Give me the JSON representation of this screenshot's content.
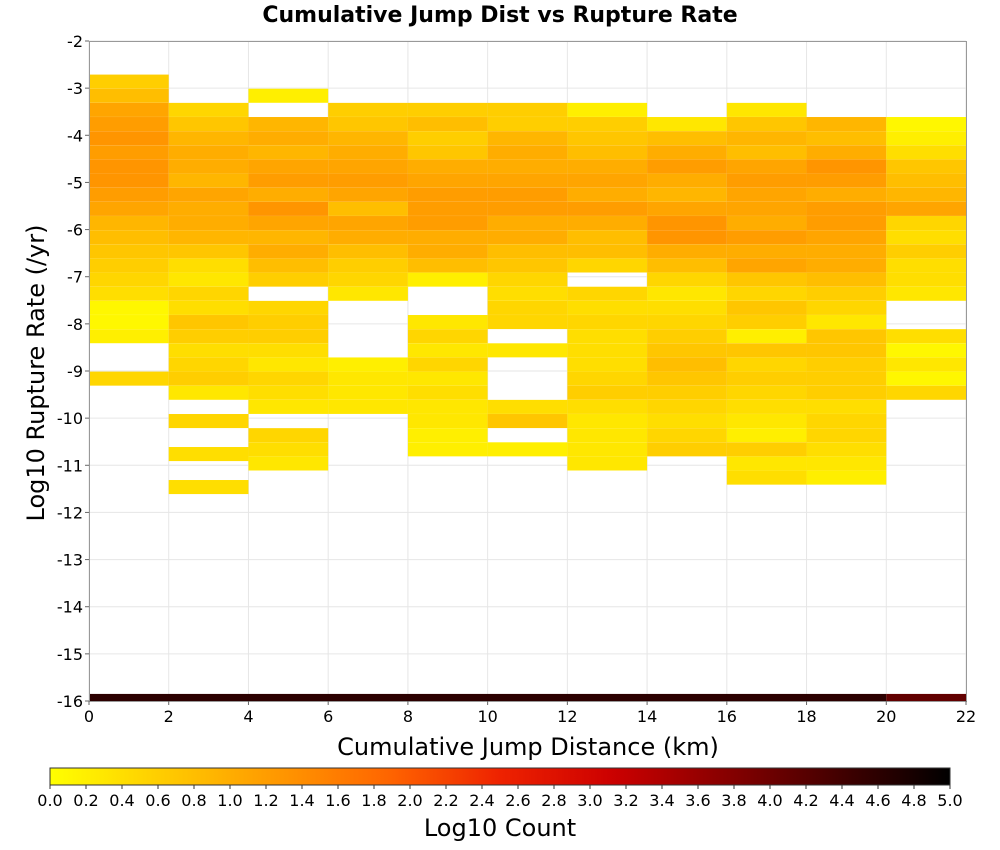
{
  "chart_data": {
    "type": "heatmap",
    "title": "Cumulative Jump Dist vs Rupture Rate",
    "xlabel": "Cumulative Jump Distance (km)",
    "ylabel": "Log10 Rupture Rate (/yr)",
    "xlim": [
      0,
      22
    ],
    "ylim": [
      -16,
      -2
    ],
    "x_ticks": [
      "0",
      "2",
      "4",
      "6",
      "8",
      "10",
      "12",
      "14",
      "16",
      "18",
      "20",
      "22"
    ],
    "y_ticks": [
      "-2",
      "-3",
      "-4",
      "-5",
      "-6",
      "-7",
      "-8",
      "-9",
      "-10",
      "-11",
      "-12",
      "-13",
      "-14",
      "-15",
      "-16"
    ],
    "x_bin_width": 2,
    "y_bin_height": 0.2875,
    "colorbar": {
      "label": "Log10 Count",
      "range": [
        0.0,
        5.0
      ],
      "ticks": [
        "0.0",
        "0.2",
        "0.4",
        "0.6",
        "0.8",
        "1.0",
        "1.2",
        "1.4",
        "1.6",
        "1.8",
        "2.0",
        "2.2",
        "2.4",
        "2.6",
        "2.8",
        "3.0",
        "3.2",
        "3.4",
        "3.6",
        "3.8",
        "4.0",
        "4.2",
        "4.4",
        "4.6",
        "4.8",
        "5.0"
      ],
      "colormap": [
        "#ffff00",
        "#ffcc00",
        "#ff9900",
        "#ff6600",
        "#ee2200",
        "#cc0000",
        "#880000",
        "#440000",
        "#000000"
      ]
    },
    "columns": [
      {
        "x_start": 0,
        "y_bottom_cells": [
          -3.0,
          -3.3,
          -3.6,
          -3.9,
          -4.2,
          -4.5,
          -4.8,
          -5.1,
          -5.4,
          -5.7,
          -6.0,
          -6.3,
          -6.6,
          -6.9,
          -7.2,
          -7.5,
          -7.8,
          -8.1,
          -8.4,
          -9.3
        ],
        "log_counts": [
          0.6,
          0.8,
          1.1,
          1.2,
          1.3,
          1.2,
          1.3,
          1.3,
          1.2,
          1.1,
          0.9,
          0.8,
          0.7,
          0.6,
          0.5,
          0.4,
          0.1,
          0.1,
          0.2,
          0.5
        ]
      },
      {
        "x_start": 2,
        "y_bottom_cells": [
          -3.6,
          -3.9,
          -4.2,
          -4.5,
          -4.8,
          -5.1,
          -5.4,
          -5.7,
          -6.0,
          -6.3,
          -6.6,
          -6.9,
          -7.2,
          -7.5,
          -7.8,
          -8.1,
          -8.4,
          -8.7,
          -9.0,
          -9.3,
          -9.6,
          -10.2,
          -10.9,
          -11.6
        ],
        "log_counts": [
          0.5,
          0.7,
          0.9,
          1.0,
          1.0,
          0.9,
          1.1,
          1.0,
          1.0,
          0.9,
          0.7,
          0.4,
          0.3,
          0.5,
          0.4,
          0.7,
          0.6,
          0.4,
          0.5,
          0.6,
          0.3,
          0.5,
          0.4,
          0.4
        ]
      },
      {
        "x_start": 4,
        "y_bottom_cells": [
          -3.3,
          -3.9,
          -4.2,
          -4.5,
          -4.8,
          -5.1,
          -5.4,
          -5.7,
          -6.0,
          -6.3,
          -6.6,
          -6.9,
          -7.2,
          -7.8,
          -8.1,
          -8.4,
          -8.7,
          -9.0,
          -9.3,
          -9.6,
          -9.9,
          -10.5,
          -10.8,
          -11.1
        ],
        "log_counts": [
          0.2,
          0.9,
          1.0,
          0.9,
          1.1,
          1.2,
          1.0,
          1.3,
          1.1,
          0.9,
          1.0,
          0.8,
          0.6,
          0.5,
          0.6,
          0.6,
          0.4,
          0.3,
          0.5,
          0.4,
          0.3,
          0.5,
          0.4,
          0.3
        ]
      },
      {
        "x_start": 6,
        "y_bottom_cells": [
          -3.6,
          -3.9,
          -4.2,
          -4.5,
          -4.8,
          -5.1,
          -5.4,
          -5.7,
          -6.0,
          -6.3,
          -6.6,
          -6.9,
          -7.2,
          -7.5,
          -9.0,
          -9.3,
          -9.6,
          -9.9
        ],
        "log_counts": [
          0.6,
          0.7,
          0.9,
          1.0,
          1.1,
          1.2,
          1.1,
          0.8,
          1.1,
          1.0,
          0.8,
          0.6,
          0.5,
          0.3,
          0.2,
          0.3,
          0.3,
          0.3
        ]
      },
      {
        "x_start": 8,
        "y_bottom_cells": [
          -3.6,
          -3.9,
          -4.2,
          -4.5,
          -4.8,
          -5.1,
          -5.4,
          -5.7,
          -6.0,
          -6.3,
          -6.6,
          -6.9,
          -7.2,
          -8.1,
          -8.4,
          -8.7,
          -9.0,
          -9.3,
          -9.6,
          -9.9,
          -10.2,
          -10.5,
          -10.8
        ],
        "log_counts": [
          0.6,
          0.8,
          0.6,
          0.7,
          1.0,
          1.1,
          1.2,
          1.2,
          1.2,
          1.0,
          1.0,
          0.8,
          0.2,
          0.3,
          0.5,
          0.3,
          0.5,
          0.3,
          0.4,
          0.3,
          0.3,
          0.2,
          0.2
        ]
      },
      {
        "x_start": 10,
        "y_bottom_cells": [
          -3.6,
          -3.9,
          -4.2,
          -4.5,
          -4.8,
          -5.1,
          -5.4,
          -5.7,
          -6.0,
          -6.3,
          -6.6,
          -6.9,
          -7.2,
          -7.5,
          -7.8,
          -8.1,
          -8.7,
          -9.9,
          -10.2,
          -10.8
        ],
        "log_counts": [
          0.6,
          0.6,
          0.9,
          1.0,
          1.0,
          1.1,
          1.2,
          1.2,
          1.0,
          1.0,
          0.8,
          0.7,
          0.5,
          0.4,
          0.5,
          0.5,
          0.3,
          0.4,
          0.7,
          0.2
        ]
      },
      {
        "x_start": 12,
        "y_bottom_cells": [
          -3.6,
          -3.9,
          -4.2,
          -4.5,
          -4.8,
          -5.1,
          -5.4,
          -5.7,
          -6.0,
          -6.3,
          -6.6,
          -6.9,
          -7.5,
          -7.8,
          -8.1,
          -8.4,
          -8.7,
          -9.0,
          -9.3,
          -9.6,
          -9.9,
          -10.2,
          -10.5,
          -10.8,
          -11.1
        ],
        "log_counts": [
          0.2,
          0.6,
          0.7,
          0.8,
          1.0,
          1.1,
          1.0,
          1.2,
          1.0,
          0.8,
          0.8,
          0.5,
          0.5,
          0.4,
          0.5,
          0.4,
          0.4,
          0.4,
          0.5,
          0.6,
          0.4,
          0.3,
          0.3,
          0.3,
          0.3
        ]
      },
      {
        "x_start": 14,
        "y_bottom_cells": [
          -3.9,
          -4.2,
          -4.5,
          -4.8,
          -5.1,
          -5.4,
          -5.7,
          -6.0,
          -6.3,
          -6.6,
          -6.9,
          -7.2,
          -7.5,
          -7.8,
          -8.1,
          -8.4,
          -8.7,
          -9.0,
          -9.3,
          -9.6,
          -9.9,
          -10.2,
          -10.5,
          -10.8
        ],
        "log_counts": [
          0.3,
          0.8,
          1.0,
          1.2,
          1.0,
          0.9,
          1.1,
          1.3,
          1.3,
          1.0,
          0.8,
          0.5,
          0.3,
          0.4,
          0.5,
          0.6,
          0.7,
          0.8,
          0.7,
          0.6,
          0.5,
          0.4,
          0.5,
          0.6
        ]
      },
      {
        "x_start": 16,
        "y_bottom_cells": [
          -3.6,
          -3.9,
          -4.2,
          -4.5,
          -4.8,
          -5.1,
          -5.4,
          -5.7,
          -6.0,
          -6.3,
          -6.6,
          -6.9,
          -7.2,
          -7.5,
          -7.8,
          -8.1,
          -8.4,
          -8.7,
          -9.0,
          -9.3,
          -9.6,
          -9.9,
          -10.2,
          -10.5,
          -10.8,
          -11.1,
          -11.4
        ],
        "log_counts": [
          0.3,
          0.7,
          0.9,
          0.8,
          1.1,
          1.2,
          1.1,
          1.1,
          1.0,
          1.2,
          1.0,
          1.1,
          0.7,
          0.5,
          0.7,
          0.6,
          0.2,
          0.7,
          0.5,
          0.6,
          0.5,
          0.4,
          0.3,
          0.2,
          0.6,
          0.3,
          0.4
        ]
      },
      {
        "x_start": 18,
        "y_bottom_cells": [
          -3.9,
          -4.2,
          -4.5,
          -4.8,
          -5.1,
          -5.4,
          -5.7,
          -6.0,
          -6.3,
          -6.6,
          -6.9,
          -7.2,
          -7.5,
          -7.8,
          -8.1,
          -8.4,
          -8.7,
          -9.0,
          -9.3,
          -9.6,
          -9.9,
          -10.2,
          -10.5,
          -10.8,
          -11.1,
          -11.4
        ],
        "log_counts": [
          0.9,
          0.8,
          1.0,
          1.3,
          1.2,
          1.0,
          1.2,
          1.2,
          1.1,
          1.0,
          1.0,
          0.8,
          0.6,
          0.5,
          0.3,
          0.7,
          0.7,
          0.6,
          0.6,
          0.6,
          0.4,
          0.5,
          0.5,
          0.4,
          0.3,
          0.2
        ]
      },
      {
        "x_start": 20,
        "y_bottom_cells": [
          -3.9,
          -4.2,
          -4.5,
          -4.8,
          -5.1,
          -5.4,
          -5.7,
          -6.0,
          -6.3,
          -6.6,
          -6.9,
          -7.2,
          -7.5,
          -8.4,
          -8.7,
          -9.0,
          -9.3,
          -9.6
        ],
        "log_counts": [
          0.1,
          0.2,
          0.4,
          0.7,
          0.8,
          0.9,
          1.1,
          0.5,
          0.4,
          0.6,
          0.4,
          0.4,
          0.3,
          0.4,
          0.1,
          0.3,
          0.1,
          0.5
        ]
      }
    ],
    "bottom_row": {
      "y_bottom": -16.0,
      "height": 0.15,
      "segments": [
        {
          "x_start": 0,
          "x_end": 20,
          "log_count": 4.6
        },
        {
          "x_start": 20,
          "x_end": 22,
          "log_count": 4.1
        }
      ]
    }
  }
}
